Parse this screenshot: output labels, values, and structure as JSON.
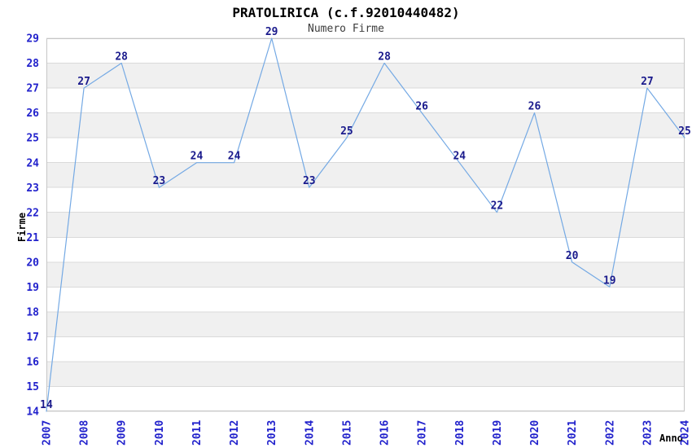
{
  "chart_data": {
    "type": "line",
    "title": "PRATOLIRICA (c.f.92010440482)",
    "subtitle": "Numero Firme",
    "xlabel": "Anno",
    "ylabel": "Firme",
    "categories": [
      "2007",
      "2008",
      "2009",
      "2010",
      "2011",
      "2012",
      "2013",
      "2014",
      "2015",
      "2016",
      "2017",
      "2018",
      "2019",
      "2020",
      "2021",
      "2022",
      "2023",
      "2024"
    ],
    "series": [
      {
        "name": "Numero Firme",
        "values": [
          14,
          27,
          28,
          23,
          24,
          24,
          29,
          23,
          25,
          28,
          26,
          24,
          22,
          26,
          20,
          19,
          27,
          25
        ]
      }
    ],
    "ylim": [
      14,
      29
    ],
    "ytick_step": 1,
    "point_labels": true,
    "legend": "none",
    "grid": "horizontal-banded",
    "colors": {
      "line": "#74A9E4",
      "point_label": "#1A1A8C",
      "axis_tick_label": "#2222CC",
      "band_fill": "#F0F0F0",
      "gridline": "#DADADA",
      "plot_border": "#C6C6C6",
      "title_text": "#000000",
      "subtitle_text": "#3D3D3D",
      "axis_title_text": "#000000",
      "background": "#FFFFFF"
    }
  }
}
